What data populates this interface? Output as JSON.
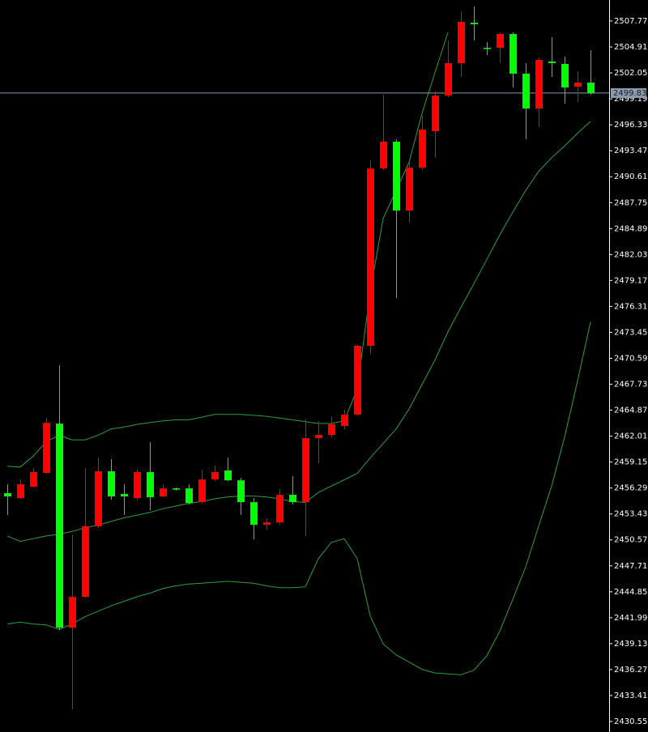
{
  "chart_data": {
    "type": "candlestick",
    "open": [
      2455.72,
      2455.18,
      2456.43,
      2457.95,
      2463.39,
      2440.89,
      2444.29,
      2452.06,
      2458.13,
      2455.63,
      2455.18,
      2458.04,
      2455.36,
      2456.25,
      2456.25,
      2454.73,
      2457.23,
      2458.22,
      2457.14,
      2454.73,
      2452.23,
      2452.5,
      2455.54,
      2454.73,
      2461.79,
      2462.14,
      2463.13,
      2464.38,
      2471.97,
      2491.52,
      2494.47,
      2486.88,
      2491.61,
      2495.63,
      2499.56,
      2503.13,
      2507.59,
      2504.82,
      2504.82,
      2506.34,
      2501.97,
      2498.13,
      2503.31,
      2503.04,
      2500.54,
      2500.98
    ],
    "high": [
      2456.7,
      2457.23,
      2458.48,
      2464.02,
      2469.82,
      2451.16,
      2458.48,
      2459.64,
      2459.47,
      2456.7,
      2458.31,
      2461.34,
      2456.7,
      2456.34,
      2456.7,
      2458.31,
      2458.75,
      2459.64,
      2457.41,
      2455.18,
      2452.95,
      2456.16,
      2457.59,
      2463.93,
      2463.66,
      2464.2,
      2464.91,
      2472.06,
      2492.41,
      2499.64,
      2494.73,
      2492.23,
      2497.32,
      2500.09,
      2505.63,
      2508.84,
      2509.38,
      2505.45,
      2506.52,
      2506.52,
      2503.13,
      2503.75,
      2505.98,
      2503.84,
      2502.23,
      2504.56
    ],
    "low": [
      2453.31,
      2455.09,
      2456.34,
      2457.86,
      2440.63,
      2431.88,
      2444.2,
      2451.88,
      2455.0,
      2453.31,
      2454.91,
      2453.84,
      2455.27,
      2455.98,
      2454.47,
      2454.56,
      2457.06,
      2457.06,
      2453.31,
      2450.63,
      2451.7,
      2452.23,
      2454.47,
      2450.98,
      2459.02,
      2461.88,
      2462.77,
      2464.29,
      2471.07,
      2491.34,
      2477.23,
      2485.54,
      2491.34,
      2492.68,
      2499.38,
      2501.61,
      2505.63,
      2504.02,
      2503.13,
      2500.45,
      2494.73,
      2496.07,
      2501.61,
      2498.66,
      2498.84,
      2499.64
    ],
    "close": [
      2455.36,
      2456.7,
      2458.04,
      2463.48,
      2440.89,
      2444.29,
      2452.06,
      2458.13,
      2455.36,
      2455.36,
      2458.04,
      2455.27,
      2456.25,
      2456.16,
      2454.64,
      2457.23,
      2458.04,
      2457.14,
      2454.73,
      2452.23,
      2452.5,
      2455.54,
      2454.73,
      2461.79,
      2462.14,
      2463.31,
      2464.38,
      2471.97,
      2491.52,
      2494.47,
      2486.88,
      2491.61,
      2495.81,
      2499.56,
      2503.13,
      2507.68,
      2507.41,
      2504.73,
      2506.34,
      2501.97,
      2498.13,
      2503.48,
      2503.13,
      2500.45,
      2500.98,
      2499.83
    ],
    "bands": {
      "upper": [
        2458.7,
        2458.6,
        2459.8,
        2461.4,
        2462.1,
        2461.6,
        2461.6,
        2462.1,
        2462.8,
        2463.0,
        2463.3,
        2463.5,
        2463.7,
        2463.8,
        2463.8,
        2464.1,
        2464.4,
        2464.4,
        2464.4,
        2464.3,
        2464.2,
        2464.0,
        2463.8,
        2463.6,
        2463.4,
        2463.4,
        2463.7,
        2467.2,
        2477.9,
        2486.0,
        2489.1,
        2492.2,
        2497.6,
        2502.1,
        2506.5,
        null,
        null,
        null,
        null,
        null,
        null,
        null,
        null,
        null,
        null,
        null
      ],
      "middle": [
        2451.0,
        2450.4,
        2450.7,
        2451.0,
        2451.2,
        2451.5,
        2451.9,
        2452.2,
        2452.6,
        2453.0,
        2453.3,
        2453.6,
        2454.0,
        2454.3,
        2454.6,
        2454.8,
        2455.1,
        2455.3,
        2455.4,
        2455.4,
        2455.3,
        2455.1,
        2454.8,
        2454.7,
        2455.8,
        2456.5,
        2457.2,
        2457.9,
        2459.6,
        2461.2,
        2462.8,
        2465.0,
        2467.7,
        2470.4,
        2473.5,
        2476.2,
        2478.8,
        2481.5,
        2484.2,
        2486.7,
        2489.1,
        2491.2,
        2492.7,
        2494.0,
        2495.4,
        2496.7
      ],
      "lower": [
        2441.3,
        2441.5,
        2441.3,
        2441.2,
        2440.7,
        2441.3,
        2442.1,
        2442.7,
        2443.3,
        2443.8,
        2444.3,
        2444.7,
        2445.2,
        2445.5,
        2445.7,
        2445.8,
        2445.9,
        2446.0,
        2445.9,
        2445.8,
        2445.5,
        2445.3,
        2445.3,
        2445.4,
        2448.5,
        2450.3,
        2450.7,
        2448.5,
        2442.2,
        2439.1,
        2437.9,
        2437.1,
        2436.3,
        2435.9,
        2435.8,
        2435.7,
        2436.2,
        2437.8,
        2440.5,
        2444.0,
        2447.6,
        2452.1,
        2456.5,
        2461.9,
        2468.1,
        2474.6
      ]
    },
    "current_price": 2499.83,
    "ylim": [
      2429.39,
      2510.09
    ],
    "yticks": [
      2507.77,
      2504.91,
      2502.05,
      2499.19,
      2496.33,
      2493.47,
      2490.61,
      2487.75,
      2484.89,
      2482.03,
      2479.17,
      2476.31,
      2473.45,
      2470.59,
      2467.73,
      2464.87,
      2462.01,
      2459.15,
      2456.29,
      2453.43,
      2450.57,
      2447.71,
      2444.85,
      2441.99,
      2439.13,
      2436.27,
      2433.41,
      2430.55
    ],
    "up_color": "#ff0000",
    "down_color": "#00ff00",
    "band_color": "#2f9e3a",
    "price_line_color": "#8a9bb0",
    "background": "#000000",
    "axis_color": "#ffffff"
  }
}
